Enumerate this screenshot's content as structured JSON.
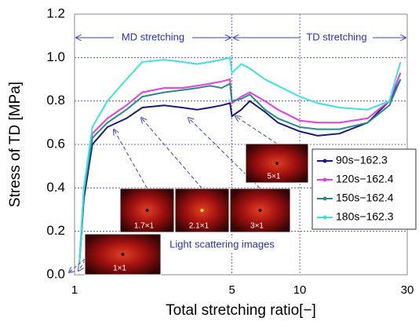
{
  "chart_data": {
    "type": "line",
    "x_label": "Total stretching ratio[−]",
    "y_label": "Stress of TD [MPa]",
    "x": [
      1.05,
      1.1,
      1.2,
      1.4,
      1.7,
      2,
      2.5,
      3,
      3.5,
      4,
      4.5,
      4.9,
      5,
      5.5,
      6,
      7,
      8,
      10,
      12,
      15,
      20,
      25,
      28
    ],
    "series": [
      {
        "name": "90s−162.3",
        "color": "#1a1a7a",
        "values": [
          0.05,
          0.35,
          0.6,
          0.68,
          0.72,
          0.77,
          0.78,
          0.77,
          0.76,
          0.77,
          0.78,
          0.79,
          0.73,
          0.76,
          0.8,
          0.75,
          0.7,
          0.66,
          0.64,
          0.65,
          0.7,
          0.8,
          0.9
        ]
      },
      {
        "name": "120s−162.4",
        "color": "#e040e0",
        "values": [
          0.05,
          0.4,
          0.65,
          0.72,
          0.78,
          0.84,
          0.86,
          0.86,
          0.87,
          0.88,
          0.89,
          0.9,
          0.79,
          0.82,
          0.84,
          0.8,
          0.76,
          0.71,
          0.7,
          0.7,
          0.72,
          0.8,
          0.93
        ]
      },
      {
        "name": "150s−162.4",
        "color": "#2a8a8a",
        "values": [
          0.05,
          0.38,
          0.63,
          0.7,
          0.76,
          0.82,
          0.84,
          0.85,
          0.86,
          0.87,
          0.86,
          0.88,
          0.8,
          0.81,
          0.83,
          0.76,
          0.72,
          0.68,
          0.67,
          0.67,
          0.7,
          0.78,
          0.9
        ]
      },
      {
        "name": "180s−162.3",
        "color": "#40e0e0",
        "values": [
          0.05,
          0.4,
          0.68,
          0.8,
          0.9,
          0.98,
          0.99,
          0.98,
          0.97,
          0.98,
          0.99,
          1.0,
          0.93,
          0.97,
          0.95,
          0.9,
          0.87,
          0.82,
          0.79,
          0.77,
          0.76,
          0.8,
          0.98
        ]
      }
    ],
    "xlim": [
      1,
      30
    ],
    "xticks": [
      1,
      5,
      10,
      30
    ],
    "log_x": true,
    "ylim": [
      0,
      1.2
    ],
    "yticks": [
      {
        "value": 0,
        "label": "0.0"
      },
      0.2,
      0.4,
      0.6,
      0.8,
      {
        "value": 1,
        "label": "1.0"
      },
      1.2
    ],
    "grid": true,
    "legend": "center right",
    "annotations": [
      "MD stretching",
      "TD stretching",
      "Light scattering images"
    ],
    "inset_labels": [
      "1×1",
      "1.7×1",
      "2.1×1",
      "3×1",
      "5×1"
    ]
  }
}
